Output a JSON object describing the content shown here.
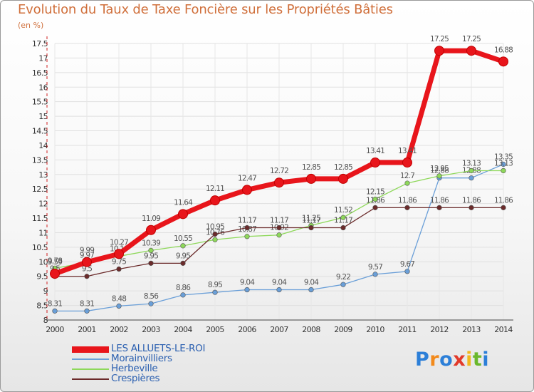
{
  "chart_data": {
    "type": "line",
    "title": "Evolution du Taux de Taxe Foncière sur les Propriétés Bâties",
    "ylabel": "(en %)",
    "xlabel": "",
    "ylim": [
      8,
      17.5
    ],
    "categories": [
      "2000",
      "2001",
      "2002",
      "2003",
      "2004",
      "2005",
      "2006",
      "2007",
      "2008",
      "2009",
      "2010",
      "2011",
      "2012",
      "2013",
      "2014"
    ],
    "y_ticks": [
      8,
      8.5,
      9,
      9.5,
      10,
      10.5,
      11,
      11.5,
      12,
      12.5,
      13,
      13.5,
      14,
      14.5,
      15,
      15.5,
      16,
      16.5,
      17,
      17.5
    ],
    "y_tick_labels": [
      "8",
      "8.5",
      "9",
      "9.5",
      "10",
      "10.5",
      "11",
      "11.5",
      "12",
      "12.5",
      "13",
      "13.5",
      "14",
      "14.5",
      "15",
      "15.5",
      "16",
      "16.5",
      "17",
      "17.5"
    ],
    "grid": true,
    "legend_position": "bottom-left",
    "series": [
      {
        "name": "LES ALLUETS-LE-ROI",
        "color": "#e8151b",
        "style": "bold",
        "values": [
          9.59,
          9.99,
          10.27,
          11.09,
          11.64,
          12.11,
          12.47,
          12.72,
          12.85,
          12.85,
          13.41,
          13.41,
          17.25,
          17.25,
          16.88
        ],
        "labels": [
          "9.59",
          "9.99",
          "10.27",
          "11.09",
          "11.64",
          "12.11",
          "12.47",
          "12.72",
          "12.85",
          "12.85",
          "13.41",
          "13.41",
          "17.25",
          "17.25",
          "16.88"
        ]
      },
      {
        "name": "Morainvilliers",
        "color": "#6a9fd8",
        "style": "thin",
        "values": [
          8.31,
          8.31,
          8.48,
          8.56,
          8.86,
          8.95,
          9.04,
          9.04,
          9.04,
          9.22,
          9.57,
          9.67,
          12.88,
          12.88,
          13.35
        ],
        "labels": [
          "8.31",
          "8.31",
          "8.48",
          "8.56",
          "8.86",
          "8.95",
          "9.04",
          "9.04",
          "9.04",
          "9.22",
          "9.57",
          "9.67",
          "12.88",
          "12.88",
          "13.35"
        ]
      },
      {
        "name": "Herbeville",
        "color": "#8ed85a",
        "style": "thin",
        "values": [
          9.78,
          9.97,
          10.19,
          10.39,
          10.55,
          10.76,
          10.87,
          10.92,
          11.25,
          11.52,
          12.15,
          12.7,
          12.95,
          13.13,
          13.13
        ],
        "labels": [
          "9.78",
          "9.97",
          "10.19",
          "10.39",
          "10.55",
          "10.76",
          "10.87",
          "10.92",
          "11.25",
          "11.52",
          "12.15",
          "12.7",
          "12.95",
          "13.13",
          "13.13"
        ]
      },
      {
        "name": "Crespières",
        "color": "#6b2b2b",
        "style": "thin",
        "values": [
          9.5,
          9.5,
          9.75,
          9.95,
          9.95,
          10.95,
          11.17,
          11.17,
          11.17,
          11.17,
          11.86,
          11.86,
          11.86,
          11.86,
          11.86
        ],
        "labels": [
          "9.5",
          "9.5",
          "9.75",
          "9.95",
          "9.95",
          "10.95",
          "11.17",
          "11.17",
          "11.17",
          "11.17",
          "11.86",
          "11.86",
          "11.86",
          "11.86",
          "11.86"
        ]
      }
    ]
  },
  "brand": {
    "logo_letters": [
      "P",
      "r",
      "o",
      "x",
      "i",
      "t",
      "i"
    ],
    "logo_colors": [
      "#2c7fd8",
      "#f28a1c",
      "#2c7fd8",
      "#e23a2a",
      "#f2b81c",
      "#6ab82c",
      "#2c7fd8"
    ]
  }
}
